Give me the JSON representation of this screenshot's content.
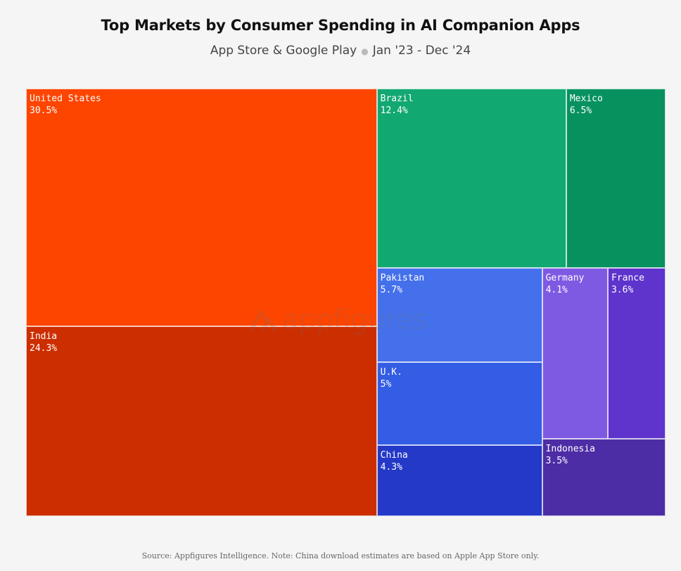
{
  "chart_data": {
    "type": "treemap",
    "title": "Top Markets by Consumer Spending in AI Companion Apps",
    "subtitle_left": "App Store & Google Play",
    "subtitle_right": "Jan '23 - Dec '24",
    "source": "Source: Appfigures Intelligence.  Note: China download estimates are based on Apple App Store only.",
    "watermark": "appfigures",
    "unit": "%",
    "items": [
      {
        "label": "United States",
        "value": 30.5,
        "display": "30.5%",
        "color": "#fd4500"
      },
      {
        "label": "India",
        "value": 24.3,
        "display": "24.3%",
        "color": "#cc2e00"
      },
      {
        "label": "Brazil",
        "value": 12.4,
        "display": "12.4%",
        "color": "#12a872"
      },
      {
        "label": "Mexico",
        "value": 6.5,
        "display": "6.5%",
        "color": "#07915f"
      },
      {
        "label": "Pakistan",
        "value": 5.7,
        "display": "5.7%",
        "color": "#4570ec"
      },
      {
        "label": "U.K.",
        "value": 5,
        "display": "5%",
        "color": "#335de4"
      },
      {
        "label": "China",
        "value": 4.3,
        "display": "4.3%",
        "color": "#2439c8"
      },
      {
        "label": "Germany",
        "value": 4.1,
        "display": "4.1%",
        "color": "#7e5ae3"
      },
      {
        "label": "France",
        "value": 3.6,
        "display": "3.6%",
        "color": "#5e34cc"
      },
      {
        "label": "Indonesia",
        "value": 3.5,
        "display": "3.5%",
        "color": "#4d2da6"
      }
    ]
  }
}
